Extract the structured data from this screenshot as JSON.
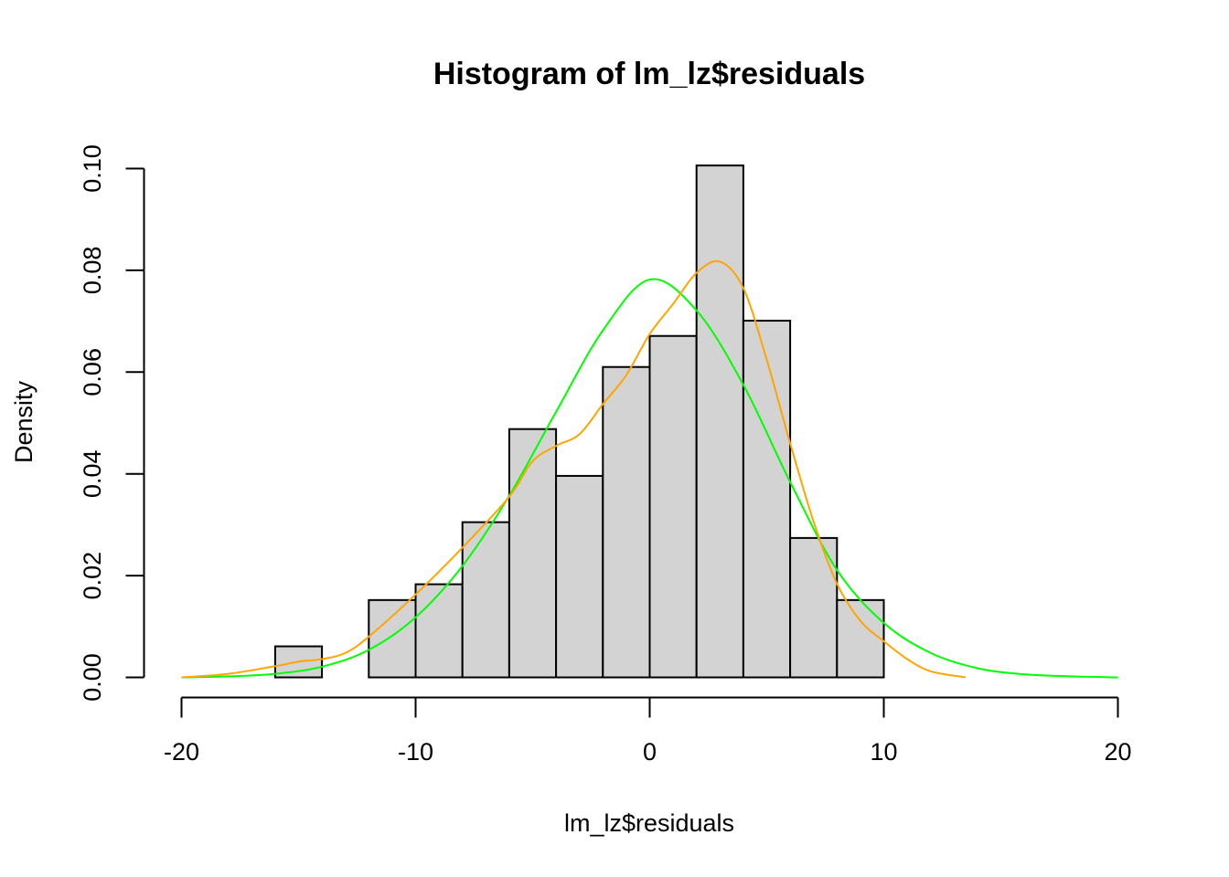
{
  "chart_data": {
    "type": "bar",
    "title": "Histogram of lm_lz$residuals",
    "xlabel": "lm_lz$residuals",
    "ylabel": "Density",
    "xlim": [
      -20,
      20
    ],
    "ylim": [
      0,
      0.1
    ],
    "x_ticks": [
      -20,
      -10,
      0,
      10,
      20
    ],
    "x_tick_labels": [
      "-20",
      "-10",
      "0",
      "10",
      "20"
    ],
    "y_ticks": [
      0.0,
      0.02,
      0.04,
      0.06,
      0.08,
      0.1
    ],
    "y_tick_labels": [
      "0.00",
      "0.02",
      "0.04",
      "0.06",
      "0.08",
      "0.10"
    ],
    "grid": false,
    "bins": [
      {
        "x0": -16,
        "x1": -14,
        "density": 0.0061
      },
      {
        "x0": -14,
        "x1": -12,
        "density": 0.0
      },
      {
        "x0": -12,
        "x1": -10,
        "density": 0.0152
      },
      {
        "x0": -10,
        "x1": -8,
        "density": 0.0183
      },
      {
        "x0": -8,
        "x1": -6,
        "density": 0.0305
      },
      {
        "x0": -6,
        "x1": -4,
        "density": 0.0488
      },
      {
        "x0": -4,
        "x1": -2,
        "density": 0.0396
      },
      {
        "x0": -2,
        "x1": 0,
        "density": 0.061
      },
      {
        "x0": 0,
        "x1": 2,
        "density": 0.0671
      },
      {
        "x0": 2,
        "x1": 4,
        "density": 0.1006
      },
      {
        "x0": 4,
        "x1": 6,
        "density": 0.0701
      },
      {
        "x0": 6,
        "x1": 8,
        "density": 0.0274
      },
      {
        "x0": 8,
        "x1": 10,
        "density": 0.0152
      }
    ],
    "series": [
      {
        "type": "line",
        "color": "#00ff00",
        "x": [
          -20,
          -18,
          -16,
          -14,
          -12,
          -10,
          -8,
          -6,
          -4,
          -2,
          0,
          2,
          4,
          6,
          8,
          10,
          12,
          14,
          16,
          18,
          20
        ],
        "y": [
          0.0,
          0.0002,
          0.0007,
          0.0021,
          0.0054,
          0.0118,
          0.0219,
          0.0357,
          0.0522,
          0.0682,
          0.0782,
          0.0721,
          0.0575,
          0.0384,
          0.0211,
          0.0107,
          0.0048,
          0.0018,
          0.0006,
          0.0002,
          0.0
        ]
      },
      {
        "type": "line",
        "color": "#ffa500",
        "x": [
          -20,
          -18,
          -16,
          -15,
          -14,
          -13,
          -12,
          -10,
          -8,
          -6,
          -5,
          -4,
          -3,
          -2,
          -1,
          0,
          1,
          2,
          3,
          4,
          5,
          6,
          7,
          8,
          9,
          10,
          11,
          12,
          13.5
        ],
        "y": [
          0.0,
          0.0007,
          0.0022,
          0.0031,
          0.0036,
          0.0048,
          0.008,
          0.0163,
          0.0255,
          0.0355,
          0.0425,
          0.0455,
          0.0478,
          0.0537,
          0.0594,
          0.0675,
          0.0734,
          0.0795,
          0.0817,
          0.0765,
          0.0624,
          0.046,
          0.0306,
          0.0184,
          0.0111,
          0.0071,
          0.0036,
          0.0012,
          0.0
        ]
      }
    ]
  }
}
